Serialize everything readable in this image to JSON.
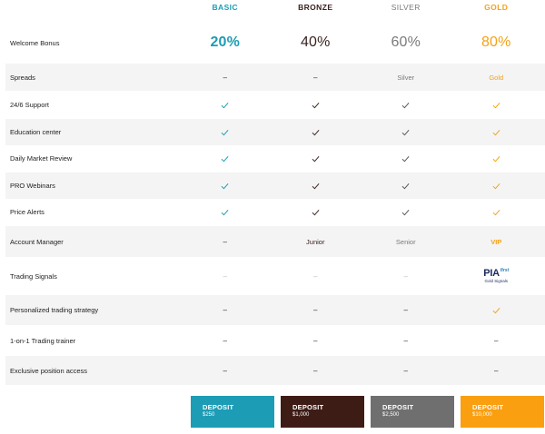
{
  "plans": {
    "basic": "BASIC",
    "bronze": "BRONZE",
    "silver": "SILVER",
    "gold": "GOLD"
  },
  "rows": {
    "welcome_bonus": {
      "label": "Welcome Bonus",
      "basic": "20%",
      "bronze": "40%",
      "silver": "60%",
      "gold": "80%"
    },
    "spreads": {
      "label": "Spreads",
      "basic": "–",
      "bronze": "–",
      "silver": "Silver",
      "gold": "Gold"
    },
    "support": {
      "label": "24/6 Support"
    },
    "education": {
      "label": "Education center"
    },
    "market_review": {
      "label": "Daily Market Review"
    },
    "webinars": {
      "label": "PRO Webinars"
    },
    "price_alerts": {
      "label": "Price Alerts"
    },
    "account_manager": {
      "label": "Account Manager",
      "basic": "–",
      "bronze": "Junior",
      "silver": "Senior",
      "gold": "VIP"
    },
    "trading_signals": {
      "label": "Trading Signals",
      "basic": "–",
      "bronze": "–",
      "silver": "–"
    },
    "strategy": {
      "label": "Personalized trading strategy",
      "basic": "–",
      "bronze": "–",
      "silver": "–"
    },
    "trainer": {
      "label": "1-on-1 Trading trainer",
      "basic": "–",
      "bronze": "–",
      "silver": "–",
      "gold": "–"
    },
    "exclusive": {
      "label": "Exclusive position access",
      "basic": "–",
      "bronze": "–",
      "silver": "–",
      "gold": "–"
    }
  },
  "signals_logo": {
    "main": "PIA",
    "sup": "first",
    "sub": "Gold Signals"
  },
  "deposit": {
    "label": "DEPOSIT",
    "basic": "$250",
    "bronze": "$1,000",
    "silver": "$2,500",
    "gold": "$10,000"
  },
  "icons": {
    "check": "check-icon"
  },
  "colors": {
    "basic": "#1c9cb5",
    "bronze": "#3e1c16",
    "silver": "#6f6f6f",
    "gold": "#f99f10"
  }
}
